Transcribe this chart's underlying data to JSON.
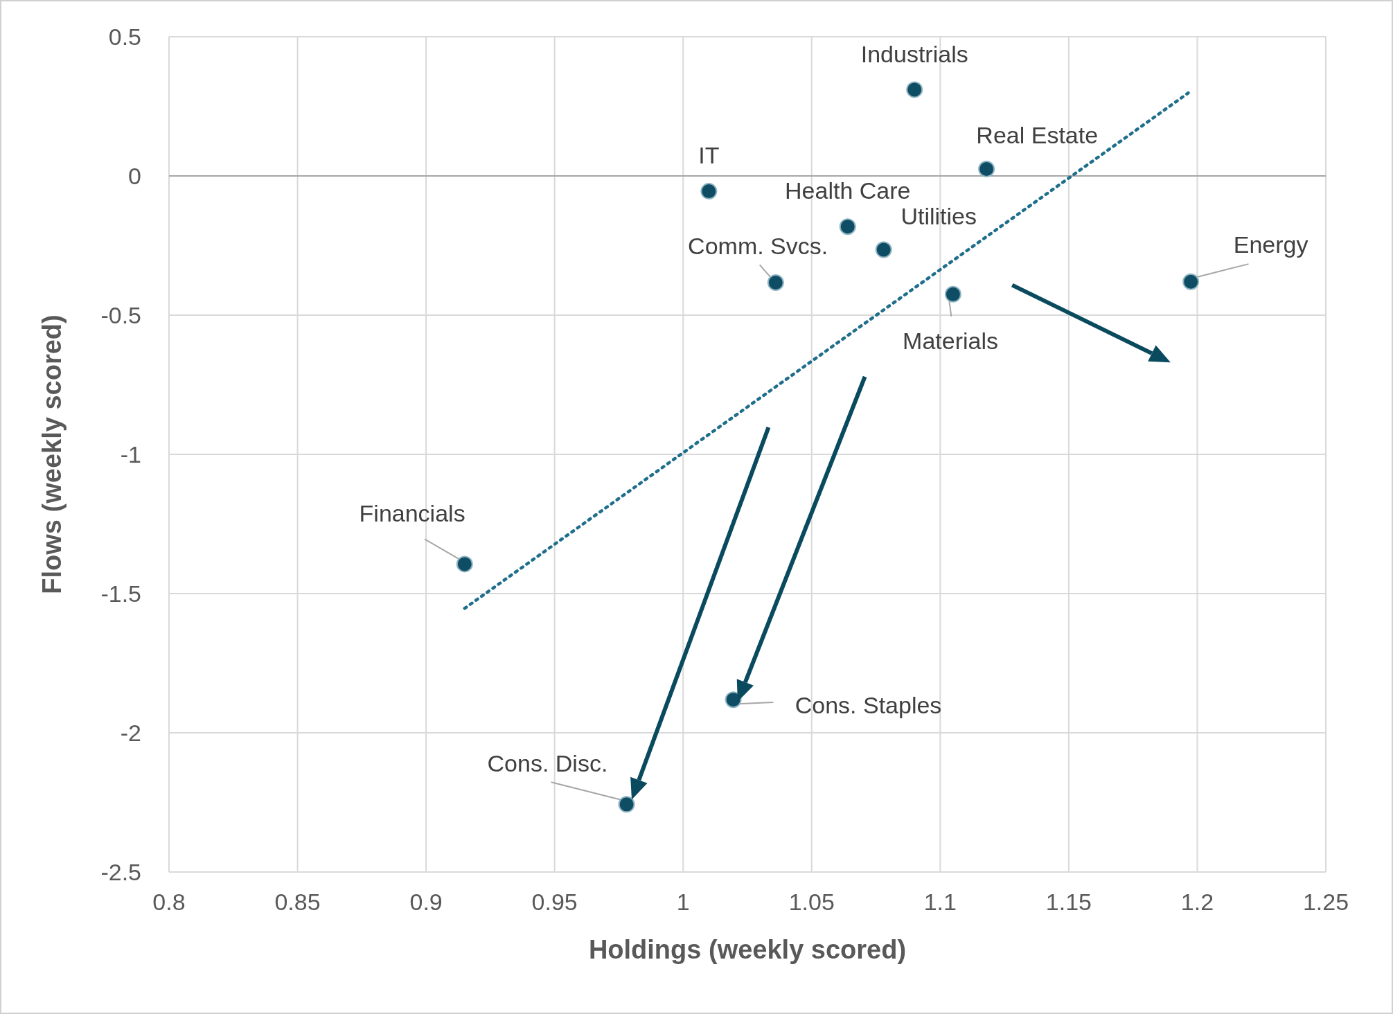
{
  "chart_data": {
    "type": "scatter",
    "xlabel": "Holdings (weekly scored)",
    "ylabel": "Flows (weekly scored)",
    "xlim": [
      0.8,
      1.25
    ],
    "xticks": [
      0.8,
      0.85,
      0.9,
      0.95,
      1,
      1.05,
      1.1,
      1.15,
      1.2,
      1.25
    ],
    "ylim": [
      -2.5,
      0.5
    ],
    "yticks": [
      -2.5,
      -2,
      -1.5,
      -1,
      -0.5,
      0,
      0.5
    ],
    "grid": true,
    "series": [
      {
        "marker": "circle",
        "color": "#0e4d64",
        "x": [
          1.09,
          1.118,
          1.01,
          1.064,
          1.078,
          1.036,
          1.105,
          1.1975,
          0.915,
          1.0195,
          0.978
        ],
        "values": [
          0.31,
          0.025,
          -0.055,
          -0.182,
          -0.265,
          -0.383,
          -0.425,
          -0.38,
          -1.394,
          -1.881,
          -2.257
        ]
      },
      {
        "type": "line",
        "color": "#1f6e8c",
        "line_style": "dotted",
        "x": [
          0.915,
          1.1965
        ],
        "values": [
          -1.553,
          0.298
        ]
      }
    ],
    "annotations": [
      {
        "text": "Industrials",
        "x": 1.09,
        "y": 0.31
      },
      {
        "text": "Real Estate",
        "x": 1.118,
        "y": 0.025
      },
      {
        "text": "IT",
        "x": 1.01,
        "y": -0.055
      },
      {
        "text": "Health Care",
        "x": 1.064,
        "y": -0.182
      },
      {
        "text": "Utilities",
        "x": 1.078,
        "y": -0.265
      },
      {
        "text": "Comm. Svcs.",
        "x": 1.036,
        "y": -0.383
      },
      {
        "text": "Materials",
        "x": 1.105,
        "y": -0.425
      },
      {
        "text": "Energy",
        "x": 1.1975,
        "y": -0.38
      },
      {
        "text": "Financials",
        "x": 0.915,
        "y": -1.394
      },
      {
        "text": "Cons. Staples",
        "x": 1.0195,
        "y": -1.881
      },
      {
        "text": "Cons. Disc.",
        "x": 0.978,
        "y": -2.257
      }
    ]
  }
}
